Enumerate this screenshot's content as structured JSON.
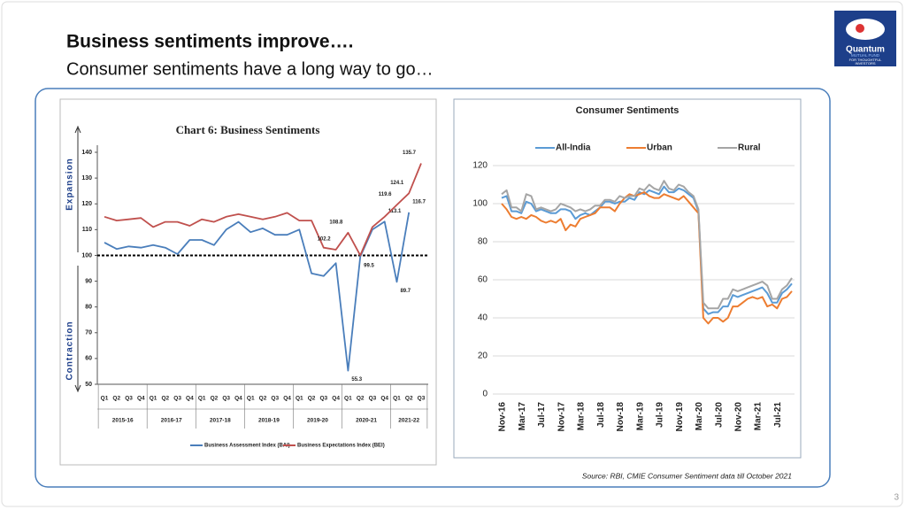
{
  "header": {
    "title": "Business sentiments improve….",
    "subtitle": "Consumer sentiments have a long way to go…"
  },
  "logo": {
    "name": "Quantum",
    "line1": "MUTUAL FUND",
    "line2": "FOR THOUGHTFUL",
    "line3": "INVESTORS"
  },
  "source": "Source: RBI, CMIE Consumer Sentiment data till October 2021",
  "page_number": "3",
  "chart_data": [
    {
      "type": "line",
      "title": "Chart 6: Business Sentiments",
      "axis_labels": {
        "top": "Expansion",
        "bottom": "Contraction"
      },
      "categories": [
        "Q1",
        "Q2",
        "Q3",
        "Q4",
        "Q1",
        "Q2",
        "Q3",
        "Q4",
        "Q1",
        "Q2",
        "Q3",
        "Q4",
        "Q1",
        "Q2",
        "Q3",
        "Q4",
        "Q1",
        "Q2",
        "Q3",
        "Q4",
        "Q1",
        "Q2",
        "Q3",
        "Q4",
        "Q1",
        "Q2",
        "Q3"
      ],
      "groups": [
        "2015-16",
        "2016-17",
        "2017-18",
        "2018-19",
        "2019-20",
        "2020-21",
        "2021-22"
      ],
      "series": [
        {
          "name": "Business Assessment Index (BAI)",
          "color": "#4a7ebb",
          "values": [
            105,
            102.5,
            103.5,
            103,
            104,
            103,
            100.5,
            106,
            106,
            104,
            110,
            113,
            109,
            110.5,
            108,
            108,
            110,
            93,
            92,
            97,
            55.3,
            99.5,
            110,
            113.1,
            89.7,
            116.7,
            null
          ],
          "value_labels": [
            null,
            null,
            null,
            null,
            null,
            null,
            null,
            null,
            null,
            null,
            null,
            null,
            null,
            null,
            null,
            null,
            null,
            null,
            null,
            null,
            "55.3",
            "99.5",
            null,
            "113.1",
            "89.7",
            "116.7",
            null
          ]
        },
        {
          "name": "Business Expectations Index (BEI)",
          "color": "#c0504d",
          "values": [
            115,
            113.5,
            114,
            114.5,
            111,
            113,
            113,
            111.5,
            114,
            113,
            115,
            116,
            115,
            114,
            115,
            116.5,
            113.5,
            113.5,
            103,
            102.2,
            108.8,
            100,
            111,
            115,
            119.6,
            124.1,
            135.7
          ],
          "value_labels": [
            null,
            null,
            null,
            null,
            null,
            null,
            null,
            null,
            null,
            null,
            null,
            null,
            null,
            null,
            null,
            null,
            null,
            null,
            null,
            "102.2",
            "108.8",
            null,
            null,
            null,
            "119.6",
            "124.1",
            "135.7"
          ]
        }
      ],
      "ylim": [
        50,
        140
      ],
      "yticks": [
        50,
        60,
        70,
        80,
        90,
        100,
        110,
        120,
        130,
        140
      ],
      "hline": 100,
      "legend": "bottom",
      "grid": false
    },
    {
      "type": "line",
      "title": "Consumer Sentiments",
      "categories": [
        "Nov-16",
        null,
        null,
        null,
        "Mar-17",
        null,
        null,
        null,
        "Jul-17",
        null,
        null,
        null,
        "Nov-17",
        null,
        null,
        null,
        "Mar-18",
        null,
        null,
        null,
        "Jul-18",
        null,
        null,
        null,
        "Nov-18",
        null,
        null,
        null,
        "Mar-19",
        null,
        null,
        null,
        "Jul-19",
        null,
        null,
        null,
        "Nov-19",
        null,
        null,
        null,
        "Mar-20",
        null,
        null,
        null,
        "Jul-20",
        null,
        null,
        null,
        "Nov-20",
        null,
        null,
        null,
        "Mar-21",
        null,
        null,
        null,
        "Jul-21",
        null,
        null,
        null
      ],
      "series": [
        {
          "name": "All-India",
          "color": "#5b9bd5",
          "values": [
            103,
            104,
            96,
            96,
            95,
            101,
            100,
            96,
            97,
            96,
            95,
            95,
            97,
            97,
            96,
            92,
            94,
            95,
            94,
            96,
            98,
            101,
            101,
            100,
            101,
            101,
            103,
            102,
            106,
            105,
            107,
            106,
            105,
            109,
            106,
            106,
            108,
            107,
            105,
            103,
            96,
            45,
            42,
            43,
            43,
            46,
            46,
            52,
            51,
            52,
            53,
            54,
            55,
            56,
            53,
            48,
            48,
            53,
            55,
            58
          ]
        },
        {
          "name": "Urban",
          "color": "#ed7d31",
          "values": [
            100,
            97,
            93,
            92,
            93,
            92,
            94,
            93,
            91,
            90,
            91,
            90,
            92,
            86,
            89,
            88,
            92,
            93,
            94,
            95,
            98,
            98,
            98,
            96,
            100,
            103,
            105,
            104,
            105,
            106,
            104,
            103,
            103,
            105,
            104,
            103,
            102,
            104,
            101,
            98,
            95,
            40,
            37,
            40,
            40,
            38,
            40,
            46,
            46,
            48,
            50,
            51,
            50,
            51,
            46,
            47,
            45,
            50,
            51,
            54
          ]
        },
        {
          "name": "Rural",
          "color": "#a5a5a5",
          "values": [
            105,
            107,
            98,
            98,
            96,
            105,
            104,
            97,
            98,
            97,
            96,
            97,
            100,
            99,
            98,
            96,
            97,
            96,
            97,
            99,
            99,
            102,
            102,
            101,
            104,
            103,
            104,
            104,
            108,
            107,
            110,
            108,
            107,
            112,
            108,
            107,
            110,
            109,
            106,
            104,
            97,
            48,
            45,
            45,
            45,
            50,
            50,
            55,
            54,
            55,
            56,
            57,
            58,
            59,
            57,
            50,
            50,
            55,
            57,
            61
          ]
        }
      ],
      "ylim": [
        0,
        120
      ],
      "yticks": [
        0,
        20,
        40,
        60,
        80,
        100,
        120
      ],
      "legend": "top",
      "grid": true
    }
  ]
}
